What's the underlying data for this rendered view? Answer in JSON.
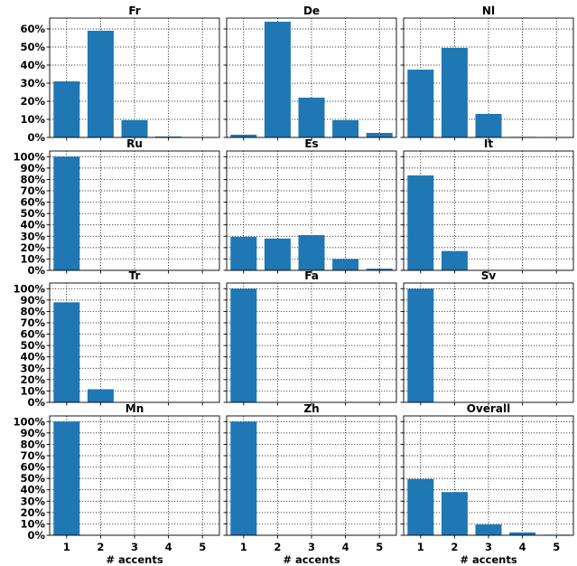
{
  "colors": {
    "bar": "#1f77b4",
    "axis": "#000000",
    "grid": "#000000",
    "background": "#ffffff"
  },
  "chart_data": [
    {
      "type": "bar",
      "title": "Fr",
      "categories": [
        "1",
        "2",
        "3",
        "4",
        "5"
      ],
      "values": [
        31,
        59,
        9.5,
        0.5,
        0.2
      ],
      "ylim": [
        0,
        66
      ],
      "yticks": [
        "0%",
        "10%",
        "20%",
        "30%",
        "40%",
        "50%",
        "60%"
      ],
      "xlabel": "",
      "grid": true
    },
    {
      "type": "bar",
      "title": "De",
      "categories": [
        "1",
        "2",
        "3",
        "4",
        "5"
      ],
      "values": [
        1.5,
        64,
        22,
        9.5,
        2.5
      ],
      "ylim": [
        0,
        66
      ],
      "xlabel": "",
      "grid": true
    },
    {
      "type": "bar",
      "title": "Nl",
      "categories": [
        "1",
        "2",
        "3",
        "4",
        "5"
      ],
      "values": [
        37.5,
        49.5,
        13,
        0.3,
        0.1
      ],
      "ylim": [
        0,
        66
      ],
      "xlabel": "",
      "grid": true
    },
    {
      "type": "bar",
      "title": "Ru",
      "categories": [
        "1",
        "2",
        "3",
        "4",
        "5"
      ],
      "values": [
        100,
        0.2,
        0.1,
        0.1,
        0.1
      ],
      "ylim": [
        0,
        105
      ],
      "yticks": [
        "0%",
        "10%",
        "20%",
        "30%",
        "40%",
        "50%",
        "60%",
        "70%",
        "80%",
        "90%",
        "100%"
      ],
      "xlabel": "",
      "grid": true
    },
    {
      "type": "bar",
      "title": "Es",
      "categories": [
        "1",
        "2",
        "3",
        "4",
        "5"
      ],
      "values": [
        29.5,
        28,
        31,
        10,
        1.5
      ],
      "ylim": [
        0,
        105
      ],
      "xlabel": "",
      "grid": true
    },
    {
      "type": "bar",
      "title": "It",
      "categories": [
        "1",
        "2",
        "3",
        "4",
        "5"
      ],
      "values": [
        83.5,
        17,
        0.3,
        0.1,
        0.1
      ],
      "ylim": [
        0,
        105
      ],
      "xlabel": "",
      "grid": true
    },
    {
      "type": "bar",
      "title": "Tr",
      "categories": [
        "1",
        "2",
        "3",
        "4",
        "5"
      ],
      "values": [
        88,
        11.5,
        0,
        0,
        0
      ],
      "ylim": [
        0,
        105
      ],
      "yticks": [
        "0%",
        "10%",
        "20%",
        "30%",
        "40%",
        "50%",
        "60%",
        "70%",
        "80%",
        "90%",
        "100%"
      ],
      "xlabel": "",
      "grid": true
    },
    {
      "type": "bar",
      "title": "Fa",
      "categories": [
        "1",
        "2",
        "3",
        "4",
        "5"
      ],
      "values": [
        100,
        0,
        0,
        0,
        0
      ],
      "ylim": [
        0,
        105
      ],
      "xlabel": "",
      "grid": true
    },
    {
      "type": "bar",
      "title": "Sv",
      "categories": [
        "1",
        "2",
        "3",
        "4",
        "5"
      ],
      "values": [
        100,
        0,
        0,
        0,
        0
      ],
      "ylim": [
        0,
        105
      ],
      "xlabel": "",
      "grid": true
    },
    {
      "type": "bar",
      "title": "Mn",
      "categories": [
        "1",
        "2",
        "3",
        "4",
        "5"
      ],
      "values": [
        100,
        0,
        0,
        0,
        0
      ],
      "ylim": [
        0,
        105
      ],
      "yticks": [
        "0%",
        "10%",
        "20%",
        "30%",
        "40%",
        "50%",
        "60%",
        "70%",
        "80%",
        "90%",
        "100%"
      ],
      "xticks": [
        "1",
        "2",
        "3",
        "4",
        "5"
      ],
      "xlabel": "# accents",
      "grid": true
    },
    {
      "type": "bar",
      "title": "Zh",
      "categories": [
        "1",
        "2",
        "3",
        "4",
        "5"
      ],
      "values": [
        100,
        0,
        0,
        0,
        0
      ],
      "ylim": [
        0,
        105
      ],
      "xticks": [
        "1",
        "2",
        "3",
        "4",
        "5"
      ],
      "xlabel": "# accents",
      "grid": true
    },
    {
      "type": "bar",
      "title": "Overall",
      "categories": [
        "1",
        "2",
        "3",
        "4",
        "5"
      ],
      "values": [
        49.5,
        38,
        9.5,
        2.5,
        0.5
      ],
      "ylim": [
        0,
        105
      ],
      "xticks": [
        "1",
        "2",
        "3",
        "4",
        "5"
      ],
      "xlabel": "# accents",
      "grid": true
    }
  ]
}
